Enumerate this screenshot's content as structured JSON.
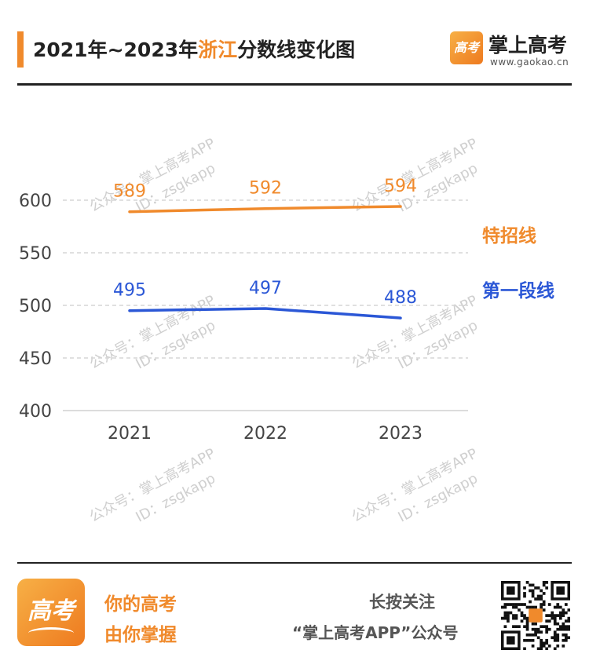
{
  "header": {
    "title_pre": "2021年~2023年",
    "title_region": "浙江",
    "title_post": "分数线变化图",
    "brand_logo_text": "高考",
    "brand_name": "掌上高考",
    "brand_url": "www.gaokao.cn"
  },
  "chart_data": {
    "type": "line",
    "title": "2021年~2023年浙江分数线变化图",
    "categories": [
      "2021",
      "2022",
      "2023"
    ],
    "series": [
      {
        "name": "特招线",
        "values": [
          589,
          592,
          594
        ],
        "color": "#f08a2c"
      },
      {
        "name": "第一段线",
        "values": [
          495,
          497,
          488
        ],
        "color": "#2b57d6"
      }
    ],
    "yticks": [
      400,
      450,
      500,
      550,
      600
    ],
    "ylim": [
      400,
      600
    ],
    "grid": true,
    "grid_style": "dashed",
    "legend_placement": "right"
  },
  "watermark": {
    "line1": "公众号：掌上高考APP",
    "line2": "ID：zsgkapp"
  },
  "footer": {
    "logo_text": "高考",
    "slogan_line1": "你的高考",
    "slogan_line2": "由你掌握",
    "follow_text": "长按关注",
    "account_text": "“掌上高考APP”公众号",
    "qr_icon": "qr-code-icon"
  }
}
